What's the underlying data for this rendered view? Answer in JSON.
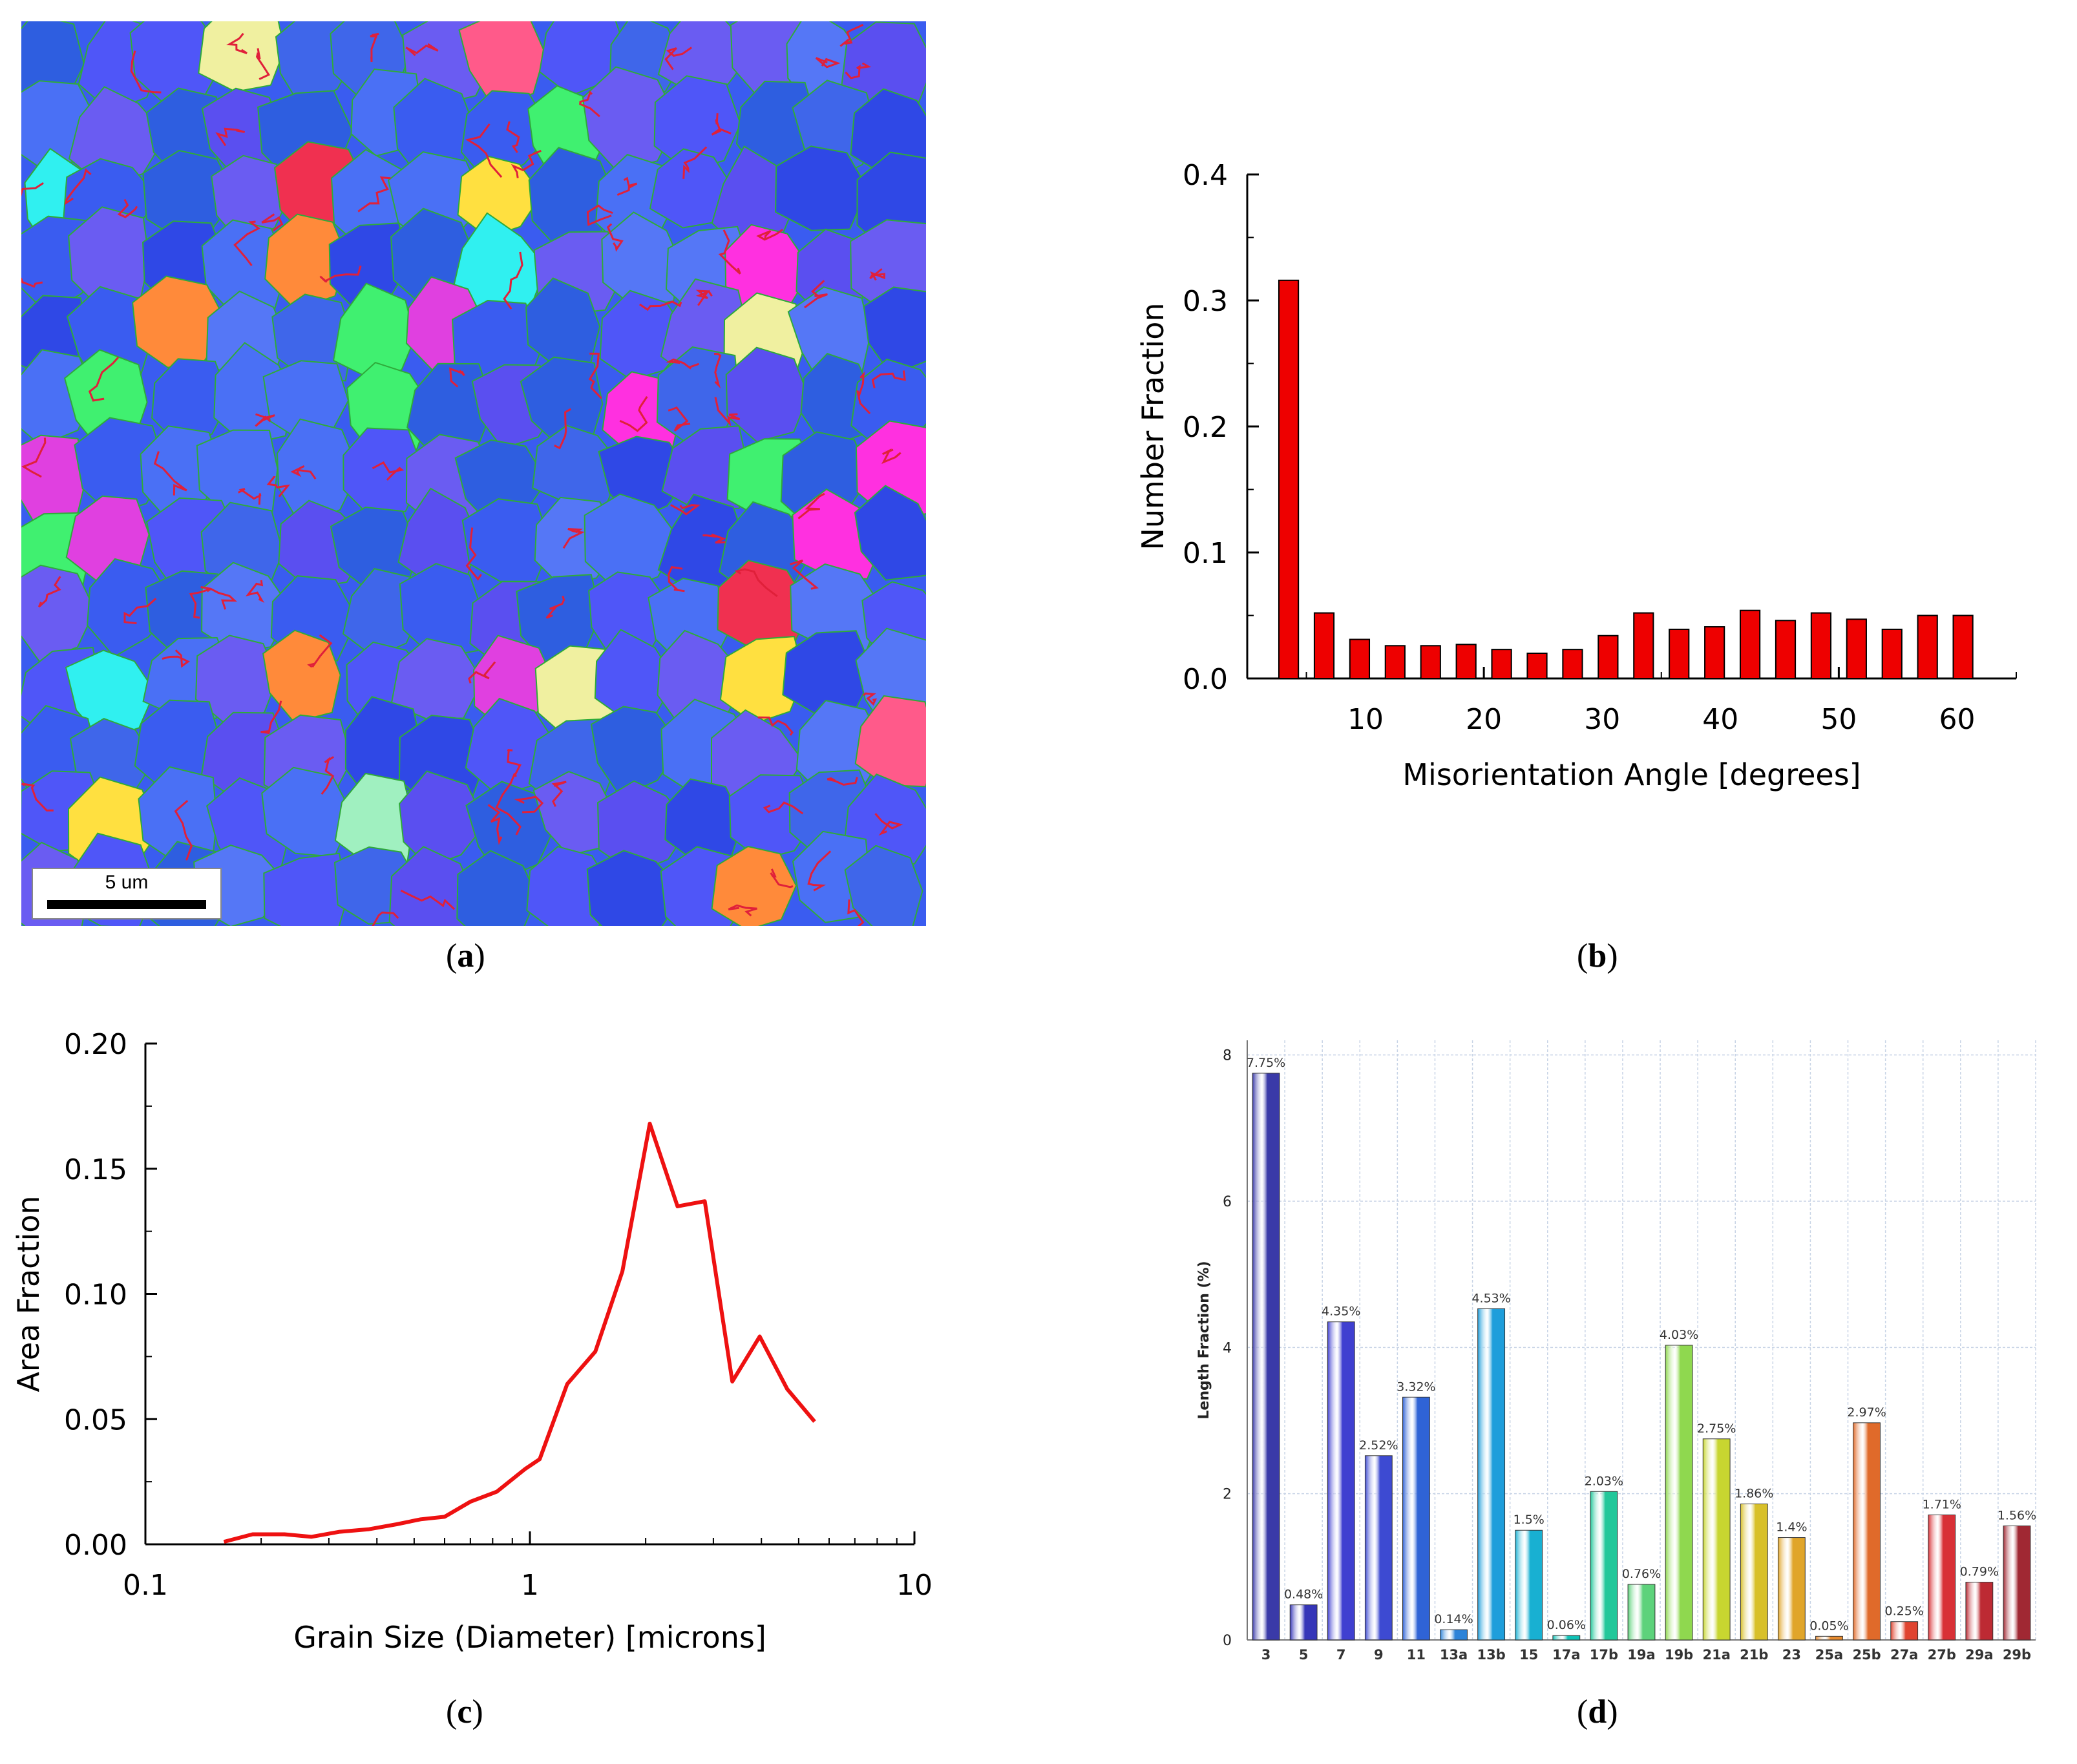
{
  "captions": {
    "a": "a",
    "b": "b",
    "c": "c",
    "d": "d"
  },
  "ebsd_map": {
    "scale_bar_label": "5 um",
    "colors": {
      "matrix_blue": "#3a5cf0",
      "gb_green": "#2faa3a",
      "twin_red": "#e0203a"
    }
  },
  "chart_data": [
    {
      "id": "b",
      "type": "bar",
      "title": "",
      "xlabel": "Misorientation Angle [degrees]",
      "ylabel": "Number Fraction",
      "xlim": [
        0,
        65
      ],
      "ylim": [
        0,
        0.4
      ],
      "xticks": [
        10,
        20,
        30,
        40,
        50,
        60
      ],
      "yticks": [
        "0.0",
        "0.1",
        "0.2",
        "0.3",
        "0.4"
      ],
      "bar_color": "#ee0000",
      "x": [
        3.5,
        6.5,
        9.5,
        12.5,
        15.5,
        18.5,
        21.5,
        24.5,
        27.5,
        30.5,
        33.5,
        36.5,
        39.5,
        42.5,
        45.5,
        48.5,
        51.5,
        54.5,
        57.5,
        60.5
      ],
      "values": [
        0.316,
        0.052,
        0.031,
        0.026,
        0.026,
        0.027,
        0.023,
        0.02,
        0.023,
        0.034,
        0.052,
        0.039,
        0.041,
        0.054,
        0.046,
        0.052,
        0.047,
        0.039,
        0.05,
        0.05
      ]
    },
    {
      "id": "c",
      "type": "line",
      "title": "",
      "xlabel": "Grain Size (Diameter) [microns]",
      "ylabel": "Area Fraction",
      "xscale": "log",
      "xlim": [
        0.1,
        10
      ],
      "ylim": [
        0,
        0.2
      ],
      "xticks": [
        "0.1",
        "1",
        "10"
      ],
      "yticks": [
        "0.00",
        "0.05",
        "0.10",
        "0.15",
        "0.20"
      ],
      "line_color": "#ee1111",
      "x": [
        0.16,
        0.19,
        0.23,
        0.27,
        0.32,
        0.38,
        0.45,
        0.52,
        0.6,
        0.7,
        0.82,
        0.97,
        1.06,
        1.25,
        1.48,
        1.74,
        2.05,
        2.42,
        2.85,
        3.36,
        3.96,
        4.67,
        5.5
      ],
      "y": [
        0.001,
        0.004,
        0.004,
        0.003,
        0.005,
        0.006,
        0.008,
        0.01,
        0.011,
        0.017,
        0.021,
        0.03,
        0.034,
        0.064,
        0.077,
        0.109,
        0.168,
        0.135,
        0.137,
        0.065,
        0.083,
        0.062,
        0.049
      ]
    },
    {
      "id": "d",
      "type": "bar",
      "title": "",
      "xlabel": "",
      "ylabel": "Length Fraction (%)",
      "ylim": [
        0,
        8.2
      ],
      "yticks": [
        "0",
        "2",
        "4",
        "6",
        "8"
      ],
      "categories": [
        "3",
        "5",
        "7",
        "9",
        "11",
        "13a",
        "13b",
        "15",
        "17a",
        "17b",
        "19a",
        "19b",
        "21a",
        "21b",
        "23",
        "25a",
        "25b",
        "27a",
        "27b",
        "29a",
        "29b"
      ],
      "values": [
        7.75,
        0.48,
        4.35,
        2.52,
        3.32,
        0.14,
        4.53,
        1.5,
        0.06,
        2.03,
        0.76,
        4.03,
        2.75,
        1.86,
        1.4,
        0.05,
        2.97,
        0.25,
        1.71,
        0.79,
        1.56
      ],
      "labels": [
        "7.75%",
        "0.48%",
        "4.35%",
        "2.52%",
        "3.32%",
        "0.14%",
        "4.53%",
        "1.5%",
        "0.06%",
        "2.03%",
        "0.76%",
        "4.03%",
        "2.75%",
        "1.86%",
        "1.4%",
        "0.05%",
        "2.97%",
        "0.25%",
        "1.71%",
        "0.79%",
        "1.56%"
      ],
      "colors": [
        "#3a3aa8",
        "#3535b8",
        "#3f3fd0",
        "#3d4ad2",
        "#2f63d6",
        "#2d83d8",
        "#1e9edb",
        "#18b0d2",
        "#10c2b6",
        "#22c79a",
        "#5dd27b",
        "#8fd84f",
        "#c8d630",
        "#d8c02a",
        "#e0a52a",
        "#e68a2e",
        "#e06a2a",
        "#e04430",
        "#d83036",
        "#bd2a33",
        "#a02833"
      ]
    }
  ]
}
